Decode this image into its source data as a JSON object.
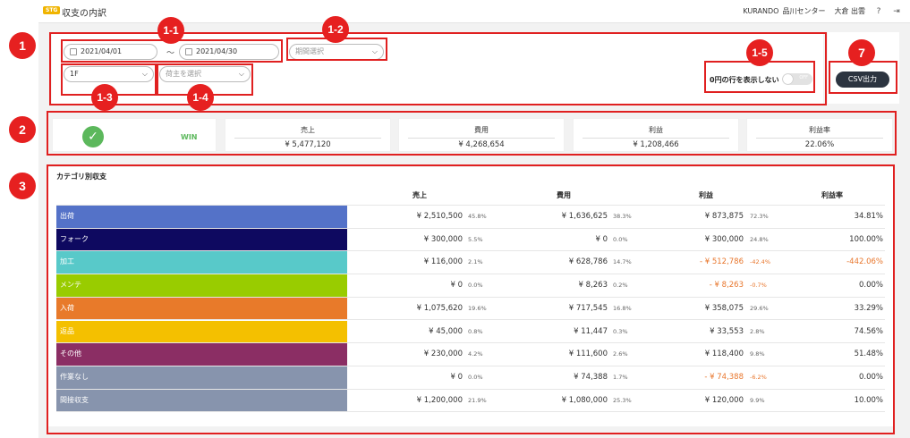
{
  "header": {
    "badge": "STG",
    "title": "収支の内訳",
    "company": "KURANDO",
    "center": "品川センター",
    "user": "大倉 出雲",
    "help_icon": "help-icon",
    "logout_icon": "logout-icon"
  },
  "annotations": {
    "b1": "1",
    "b1_1": "1-1",
    "b1_2": "1-2",
    "b1_3": "1-3",
    "b1_4": "1-4",
    "b1_5": "1-5",
    "b2": "2",
    "b3": "3",
    "b7": "7"
  },
  "filters": {
    "date_from": "2021/04/01",
    "date_to": "2021/04/30",
    "tilde": "〜",
    "period_placeholder": "期間選択",
    "floor_value": "1F",
    "shipper_placeholder": "荷主を選択",
    "zero_rows_label": "0円の行を表示しない",
    "toggle_state": "OFF",
    "csv_label": "CSV出力"
  },
  "summary": {
    "status": "WIN",
    "sales_label": "売上",
    "sales_value": "¥ 5,477,120",
    "cost_label": "費用",
    "cost_value": "¥ 4,268,654",
    "profit_label": "利益",
    "profit_value": "¥ 1,208,466",
    "margin_label": "利益率",
    "margin_value": "22.06%"
  },
  "table": {
    "title": "カテゴリ別収支",
    "columns": [
      "売上",
      "費用",
      "利益",
      "利益率"
    ],
    "rows": [
      {
        "name": "出荷",
        "color": "#5472c8",
        "sales": "¥ 2,510,500",
        "sales_pct": "45.8%",
        "cost": "¥ 1,636,625",
        "cost_pct": "38.3%",
        "profit": "¥ 873,875",
        "profit_pct": "72.3%",
        "margin": "34.81%",
        "neg": false
      },
      {
        "name": "フォーク",
        "color": "#0e0960",
        "sales": "¥ 300,000",
        "sales_pct": "5.5%",
        "cost": "¥ 0",
        "cost_pct": "0.0%",
        "profit": "¥ 300,000",
        "profit_pct": "24.8%",
        "margin": "100.00%",
        "neg": false
      },
      {
        "name": "加工",
        "color": "#58c9c9",
        "sales": "¥ 116,000",
        "sales_pct": "2.1%",
        "cost": "¥ 628,786",
        "cost_pct": "14.7%",
        "profit": "- ¥ 512,786",
        "profit_pct": "-42.4%",
        "margin": "-442.06%",
        "neg": true
      },
      {
        "name": "メンテ",
        "color": "#99cc00",
        "sales": "¥ 0",
        "sales_pct": "0.0%",
        "cost": "¥ 8,263",
        "cost_pct": "0.2%",
        "profit": "- ¥ 8,263",
        "profit_pct": "-0.7%",
        "margin": "0.00%",
        "neg": true
      },
      {
        "name": "入荷",
        "color": "#e87a2a",
        "sales": "¥ 1,075,620",
        "sales_pct": "19.6%",
        "cost": "¥ 717,545",
        "cost_pct": "16.8%",
        "profit": "¥ 358,075",
        "profit_pct": "29.6%",
        "margin": "33.29%",
        "neg": false
      },
      {
        "name": "返品",
        "color": "#f4c000",
        "sales": "¥ 45,000",
        "sales_pct": "0.8%",
        "cost": "¥ 11,447",
        "cost_pct": "0.3%",
        "profit": "¥ 33,553",
        "profit_pct": "2.8%",
        "margin": "74.56%",
        "neg": false
      },
      {
        "name": "その他",
        "color": "#8b2e64",
        "sales": "¥ 230,000",
        "sales_pct": "4.2%",
        "cost": "¥ 111,600",
        "cost_pct": "2.6%",
        "profit": "¥ 118,400",
        "profit_pct": "9.8%",
        "margin": "51.48%",
        "neg": false
      },
      {
        "name": "作業なし",
        "color": "#8794ad",
        "sales": "¥ 0",
        "sales_pct": "0.0%",
        "cost": "¥ 74,388",
        "cost_pct": "1.7%",
        "profit": "- ¥ 74,388",
        "profit_pct": "-6.2%",
        "margin": "0.00%",
        "neg": true
      },
      {
        "name": "間接収支",
        "color": "#8794ad",
        "sales": "¥ 1,200,000",
        "sales_pct": "21.9%",
        "cost": "¥ 1,080,000",
        "cost_pct": "25.3%",
        "profit": "¥ 120,000",
        "profit_pct": "9.9%",
        "margin": "10.00%",
        "neg": false
      }
    ]
  }
}
